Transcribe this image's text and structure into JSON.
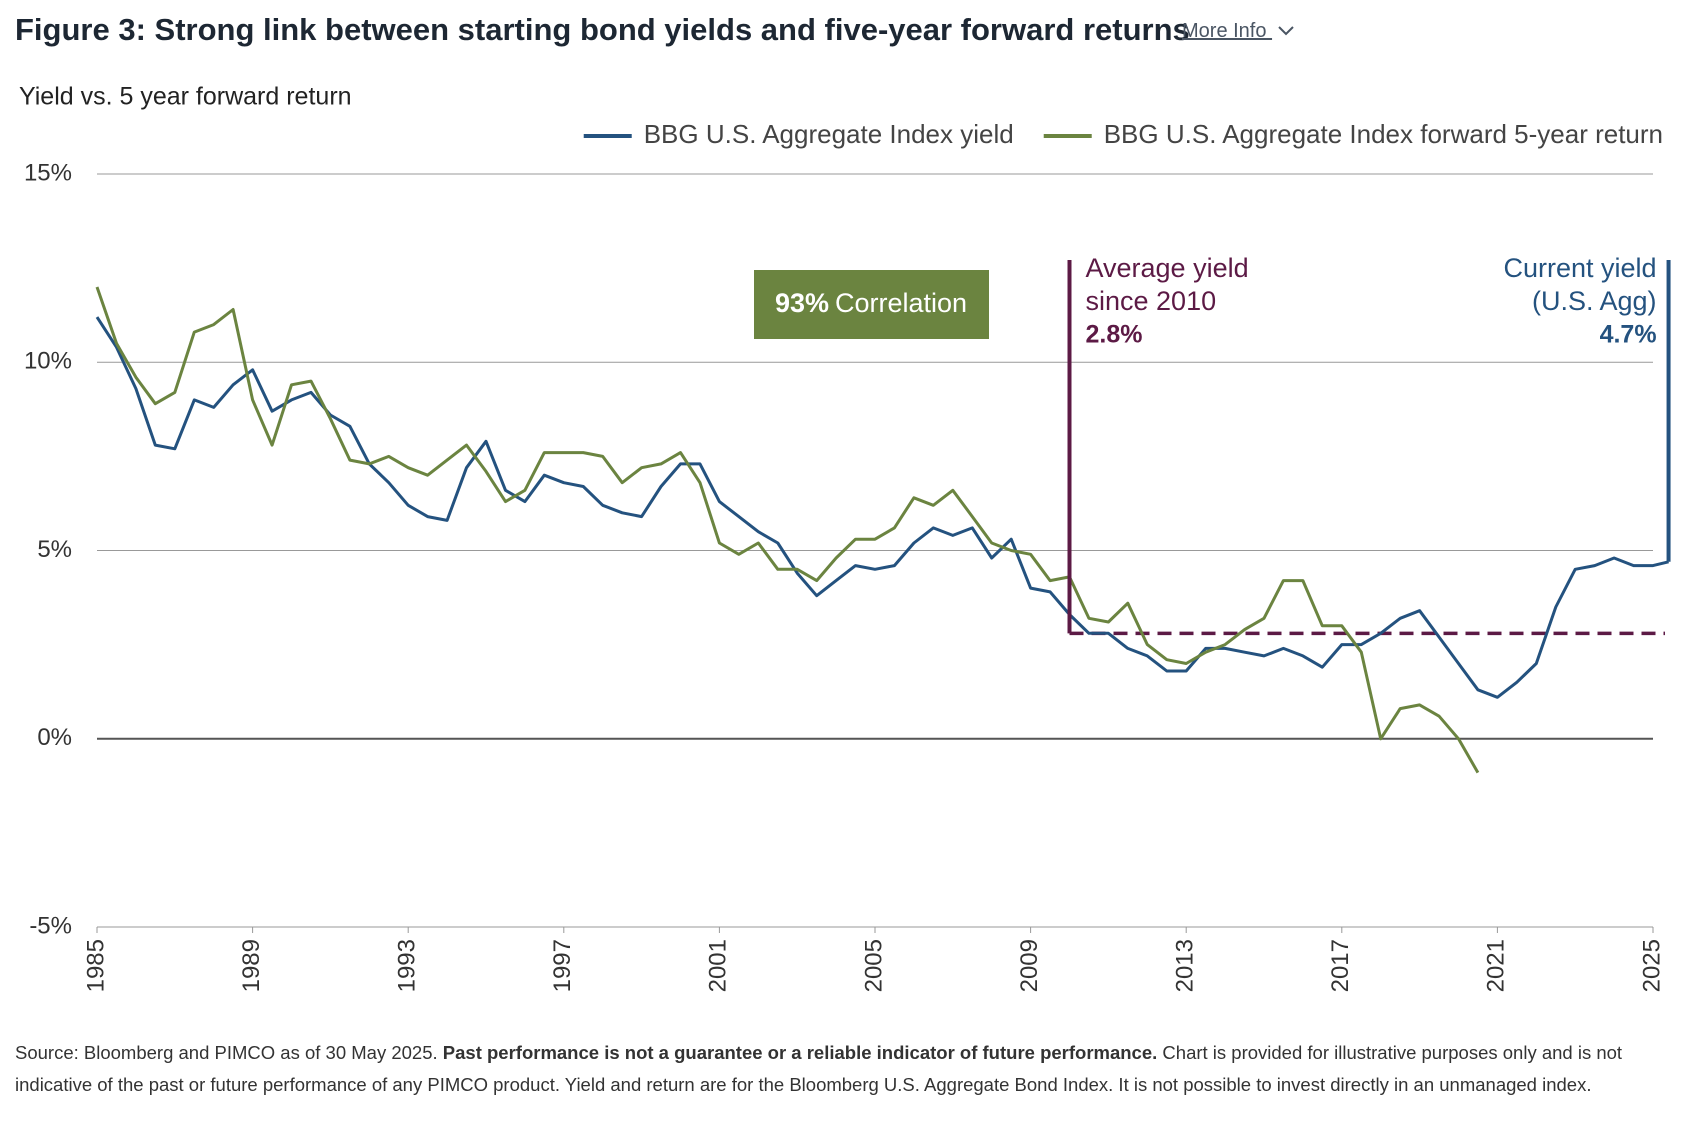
{
  "chart_data": {
    "type": "line",
    "title": "Figure 3: Strong link between starting bond yields and five-year forward returns",
    "more_info": "More Info",
    "subtitle": "Yield vs. 5 year forward return",
    "x": [
      1985,
      1985.5,
      1986,
      1986.5,
      1987,
      1987.5,
      1988,
      1988.5,
      1989,
      1989.5,
      1990,
      1990.5,
      1991,
      1991.5,
      1992,
      1992.5,
      1993,
      1993.5,
      1994,
      1994.5,
      1995,
      1995.5,
      1996,
      1996.5,
      1997,
      1997.5,
      1998,
      1998.5,
      1999,
      1999.5,
      2000,
      2000.5,
      2001,
      2001.5,
      2002,
      2002.5,
      2003,
      2003.5,
      2004,
      2004.5,
      2005,
      2005.5,
      2006,
      2006.5,
      2007,
      2007.5,
      2008,
      2008.5,
      2009,
      2009.5,
      2010,
      2010.5,
      2011,
      2011.5,
      2012,
      2012.5,
      2013,
      2013.5,
      2014,
      2014.5,
      2015,
      2015.5,
      2016,
      2016.5,
      2017,
      2017.5,
      2018,
      2018.5,
      2019,
      2019.5,
      2020,
      2020.5,
      2021,
      2021.5,
      2022,
      2022.5,
      2023,
      2023.5,
      2024,
      2024.5,
      2025,
      2025.4
    ],
    "series": [
      {
        "name": "BBG U.S. Aggregate Index yield",
        "color": "#24527f",
        "values": [
          11.2,
          10.4,
          9.3,
          7.8,
          7.7,
          9.0,
          8.8,
          9.4,
          9.8,
          8.7,
          9.0,
          9.2,
          8.6,
          8.3,
          7.3,
          6.8,
          6.2,
          5.9,
          5.8,
          7.2,
          7.9,
          6.6,
          6.3,
          7.0,
          6.8,
          6.7,
          6.2,
          6.0,
          5.9,
          6.7,
          7.3,
          7.3,
          6.3,
          5.9,
          5.5,
          5.2,
          4.4,
          3.8,
          4.2,
          4.6,
          4.5,
          4.6,
          5.2,
          5.6,
          5.4,
          5.6,
          4.8,
          5.3,
          4.0,
          3.9,
          3.3,
          2.8,
          2.8,
          2.4,
          2.2,
          1.8,
          1.8,
          2.4,
          2.4,
          2.3,
          2.2,
          2.4,
          2.2,
          1.9,
          2.5,
          2.5,
          2.8,
          3.2,
          3.4,
          2.7,
          2.0,
          1.3,
          1.1,
          1.5,
          2.0,
          3.5,
          4.5,
          4.6,
          4.8,
          4.6,
          4.6,
          4.7
        ]
      },
      {
        "name": "BBG U.S. Aggregate Index forward 5-year return",
        "color": "#6b8440",
        "values": [
          12.0,
          10.5,
          9.6,
          8.9,
          9.2,
          10.8,
          11.0,
          11.4,
          9.0,
          7.8,
          9.4,
          9.5,
          8.5,
          7.4,
          7.3,
          7.5,
          7.2,
          7.0,
          7.4,
          7.8,
          7.1,
          6.3,
          6.6,
          7.6,
          7.6,
          7.6,
          7.5,
          6.8,
          7.2,
          7.3,
          7.6,
          6.8,
          5.2,
          4.9,
          5.2,
          4.5,
          4.5,
          4.2,
          4.8,
          5.3,
          5.3,
          5.6,
          6.4,
          6.2,
          6.6,
          5.9,
          5.2,
          5.0,
          4.9,
          4.2,
          4.3,
          3.2,
          3.1,
          3.6,
          2.5,
          2.1,
          2.0,
          2.3,
          2.5,
          2.9,
          3.2,
          4.2,
          4.2,
          3.0,
          3.0,
          2.3,
          0.0,
          0.8,
          0.9,
          0.6,
          0.0,
          -0.9,
          null,
          null,
          null,
          null,
          null,
          null,
          null,
          null,
          null,
          null
        ]
      }
    ],
    "xlim": [
      1985,
      2025
    ],
    "xticks": [
      1985,
      1989,
      1993,
      1997,
      2001,
      2005,
      2009,
      2013,
      2017,
      2021,
      2025
    ],
    "ylim": [
      -5,
      15
    ],
    "yticks": [
      {
        "value": -5,
        "label": "-5%"
      },
      {
        "value": 0,
        "label": "0%"
      },
      {
        "value": 5,
        "label": "5%"
      },
      {
        "value": 10,
        "label": "10%"
      },
      {
        "value": 15,
        "label": "15%"
      }
    ],
    "grid": true,
    "legend": "top-right",
    "annotations": {
      "correlation": {
        "value": "93%",
        "text": "Correlation",
        "color": "#6b8440"
      },
      "average": {
        "line1": "Average yield",
        "line2": "since 2010",
        "x": 2010,
        "value": 2.8,
        "label": "2.8%",
        "color": "#5c1a45"
      },
      "current": {
        "line1": "Current yield",
        "line2": "(U.S. Agg)",
        "value": 4.7,
        "label": "4.7%",
        "color": "#24527f"
      }
    },
    "source": {
      "lead": "Source: Bloomberg and PIMCO as of 30 May 2025. ",
      "bold": "Past performance is not a guarantee or a reliable indicator of future performance.",
      "rest": " Chart is provided for illustrative purposes only and is not indicative of the past or future performance of any PIMCO product. Yield and return are for the Bloomberg U.S. Aggregate Bond Index. It is not possible to invest directly in an unmanaged index."
    }
  }
}
